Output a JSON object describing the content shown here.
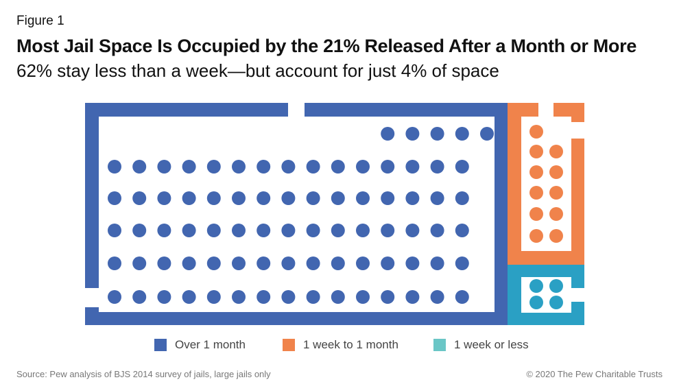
{
  "header": {
    "figure_label": "Figure 1",
    "title": "Most Jail Space Is Occupied by the 21% Released After a Month or More",
    "subtitle": "62% stay less than a week—but account for just 4% of space"
  },
  "chart_data": {
    "type": "unit",
    "title": "Most Jail Space Is Occupied by the 21% Released After a Month or More",
    "subtitle": "62% stay less than a week—but account for just 4% of space",
    "series": [
      {
        "name": "Over 1 month",
        "dots": 80,
        "color": "#4266b0"
      },
      {
        "name": "1 week to 1 month",
        "dots": 11,
        "color": "#f0834b"
      },
      {
        "name": "1 week or less",
        "dots": 4,
        "color": "#2aa0c4"
      }
    ],
    "legend_position": "bottom",
    "grid": false
  },
  "legend": {
    "items": [
      {
        "label": "Over 1 month",
        "color": "#4266b0"
      },
      {
        "label": "1 week to 1 month",
        "color": "#f0834b"
      },
      {
        "label": "1 week or less",
        "color": "#6ac6c6"
      }
    ]
  },
  "footer": {
    "source": "Source: Pew analysis of BJS 2014 survey of jails, large jails only",
    "copyright": "© 2020 The Pew Charitable Trusts"
  }
}
